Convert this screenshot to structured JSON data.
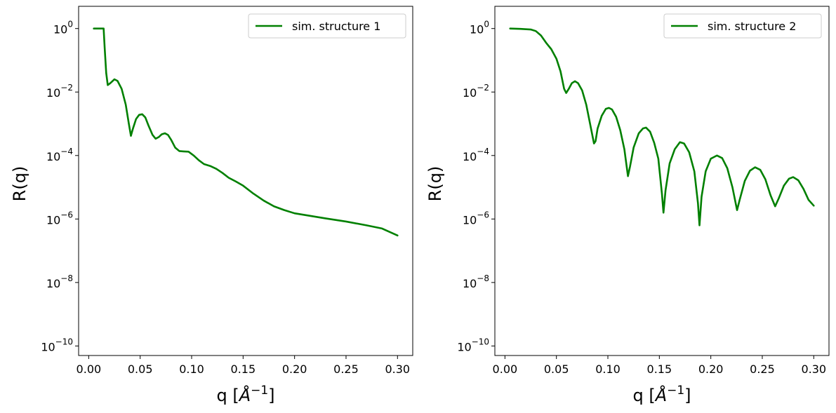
{
  "chart_data": [
    {
      "type": "line",
      "title": "",
      "xlabel": "q [Å⁻¹]",
      "ylabel": "R(q)",
      "xlim": [
        -0.0098,
        0.3148
      ],
      "ylim_log10": [
        -10.3,
        0.7
      ],
      "yscale": "log",
      "xticks": [
        0.0,
        0.05,
        0.1,
        0.15,
        0.2,
        0.25,
        0.3
      ],
      "xtick_labels": [
        "0.00",
        "0.05",
        "0.10",
        "0.15",
        "0.20",
        "0.25",
        "0.30"
      ],
      "yticks_log10": [
        0,
        -2,
        -4,
        -6,
        -8,
        -10
      ],
      "ytick_labels": [
        {
          "base": "10",
          "exp": "0"
        },
        {
          "base": "10",
          "exp": "−2"
        },
        {
          "base": "10",
          "exp": "−4"
        },
        {
          "base": "10",
          "exp": "−6"
        },
        {
          "base": "10",
          "exp": "−8"
        },
        {
          "base": "10",
          "exp": "−10"
        }
      ],
      "legend_position": "top-right",
      "series": [
        {
          "name": "sim. structure 1",
          "color": "#008000",
          "points": [
            [
              0.005,
              0.0
            ],
            [
              0.0145,
              0.0
            ],
            [
              0.0155,
              -0.6
            ],
            [
              0.017,
              -1.4
            ],
            [
              0.0185,
              -1.78
            ],
            [
              0.021,
              -1.72
            ],
            [
              0.025,
              -1.6
            ],
            [
              0.028,
              -1.65
            ],
            [
              0.032,
              -1.9
            ],
            [
              0.036,
              -2.4
            ],
            [
              0.039,
              -3.0
            ],
            [
              0.041,
              -3.38
            ],
            [
              0.043,
              -3.15
            ],
            [
              0.046,
              -2.85
            ],
            [
              0.049,
              -2.72
            ],
            [
              0.052,
              -2.7
            ],
            [
              0.055,
              -2.8
            ],
            [
              0.058,
              -3.05
            ],
            [
              0.062,
              -3.35
            ],
            [
              0.065,
              -3.47
            ],
            [
              0.068,
              -3.42
            ],
            [
              0.071,
              -3.33
            ],
            [
              0.074,
              -3.3
            ],
            [
              0.077,
              -3.35
            ],
            [
              0.08,
              -3.5
            ],
            [
              0.084,
              -3.75
            ],
            [
              0.088,
              -3.86
            ],
            [
              0.092,
              -3.87
            ],
            [
              0.097,
              -3.88
            ],
            [
              0.102,
              -4.0
            ],
            [
              0.107,
              -4.15
            ],
            [
              0.112,
              -4.27
            ],
            [
              0.118,
              -4.33
            ],
            [
              0.124,
              -4.42
            ],
            [
              0.13,
              -4.55
            ],
            [
              0.136,
              -4.7
            ],
            [
              0.143,
              -4.82
            ],
            [
              0.15,
              -4.95
            ],
            [
              0.16,
              -5.2
            ],
            [
              0.17,
              -5.42
            ],
            [
              0.18,
              -5.6
            ],
            [
              0.19,
              -5.72
            ],
            [
              0.2,
              -5.82
            ],
            [
              0.215,
              -5.9
            ],
            [
              0.23,
              -5.98
            ],
            [
              0.25,
              -6.08
            ],
            [
              0.27,
              -6.2
            ],
            [
              0.285,
              -6.3
            ],
            [
              0.3,
              -6.52
            ]
          ]
        }
      ]
    },
    {
      "type": "line",
      "title": "",
      "xlabel": "q [Å⁻¹]",
      "ylabel": "R(q)",
      "xlim": [
        -0.0098,
        0.3148
      ],
      "ylim_log10": [
        -10.3,
        0.7
      ],
      "yscale": "log",
      "xticks": [
        0.0,
        0.05,
        0.1,
        0.15,
        0.2,
        0.25,
        0.3
      ],
      "xtick_labels": [
        "0.00",
        "0.05",
        "0.10",
        "0.15",
        "0.20",
        "0.25",
        "0.30"
      ],
      "yticks_log10": [
        0,
        -2,
        -4,
        -6,
        -8,
        -10
      ],
      "ytick_labels": [
        {
          "base": "10",
          "exp": "0"
        },
        {
          "base": "10",
          "exp": "−2"
        },
        {
          "base": "10",
          "exp": "−4"
        },
        {
          "base": "10",
          "exp": "−6"
        },
        {
          "base": "10",
          "exp": "−8"
        },
        {
          "base": "10",
          "exp": "−10"
        }
      ],
      "legend_position": "top-right",
      "series": [
        {
          "name": "sim. structure 2",
          "color": "#008000",
          "points": [
            [
              0.005,
              0.0
            ],
            [
              0.015,
              -0.01
            ],
            [
              0.025,
              -0.03
            ],
            [
              0.03,
              -0.08
            ],
            [
              0.035,
              -0.22
            ],
            [
              0.04,
              -0.45
            ],
            [
              0.045,
              -0.65
            ],
            [
              0.05,
              -0.95
            ],
            [
              0.054,
              -1.35
            ],
            [
              0.0575,
              -1.9
            ],
            [
              0.0595,
              -2.03
            ],
            [
              0.062,
              -1.9
            ],
            [
              0.065,
              -1.72
            ],
            [
              0.068,
              -1.66
            ],
            [
              0.071,
              -1.72
            ],
            [
              0.075,
              -1.95
            ],
            [
              0.079,
              -2.4
            ],
            [
              0.083,
              -3.05
            ],
            [
              0.0865,
              -3.62
            ],
            [
              0.088,
              -3.55
            ],
            [
              0.09,
              -3.15
            ],
            [
              0.094,
              -2.75
            ],
            [
              0.098,
              -2.53
            ],
            [
              0.101,
              -2.5
            ],
            [
              0.104,
              -2.55
            ],
            [
              0.108,
              -2.78
            ],
            [
              0.112,
              -3.2
            ],
            [
              0.116,
              -3.8
            ],
            [
              0.1195,
              -4.65
            ],
            [
              0.1215,
              -4.35
            ],
            [
              0.125,
              -3.75
            ],
            [
              0.13,
              -3.3
            ],
            [
              0.134,
              -3.15
            ],
            [
              0.137,
              -3.12
            ],
            [
              0.141,
              -3.25
            ],
            [
              0.145,
              -3.6
            ],
            [
              0.149,
              -4.1
            ],
            [
              0.1525,
              -5.2
            ],
            [
              0.154,
              -5.8
            ],
            [
              0.156,
              -5.1
            ],
            [
              0.16,
              -4.25
            ],
            [
              0.165,
              -3.8
            ],
            [
              0.17,
              -3.58
            ],
            [
              0.174,
              -3.62
            ],
            [
              0.179,
              -3.9
            ],
            [
              0.184,
              -4.5
            ],
            [
              0.1875,
              -5.5
            ],
            [
              0.189,
              -6.2
            ],
            [
              0.191,
              -5.3
            ],
            [
              0.195,
              -4.5
            ],
            [
              0.2,
              -4.1
            ],
            [
              0.206,
              -4.0
            ],
            [
              0.211,
              -4.08
            ],
            [
              0.216,
              -4.4
            ],
            [
              0.221,
              -5.0
            ],
            [
              0.2255,
              -5.72
            ],
            [
              0.228,
              -5.4
            ],
            [
              0.233,
              -4.8
            ],
            [
              0.238,
              -4.48
            ],
            [
              0.243,
              -4.37
            ],
            [
              0.248,
              -4.45
            ],
            [
              0.253,
              -4.75
            ],
            [
              0.258,
              -5.25
            ],
            [
              0.2625,
              -5.6
            ],
            [
              0.266,
              -5.35
            ],
            [
              0.271,
              -4.95
            ],
            [
              0.276,
              -4.73
            ],
            [
              0.28,
              -4.68
            ],
            [
              0.285,
              -4.78
            ],
            [
              0.29,
              -5.05
            ],
            [
              0.295,
              -5.4
            ],
            [
              0.3,
              -5.58
            ]
          ]
        }
      ]
    }
  ]
}
